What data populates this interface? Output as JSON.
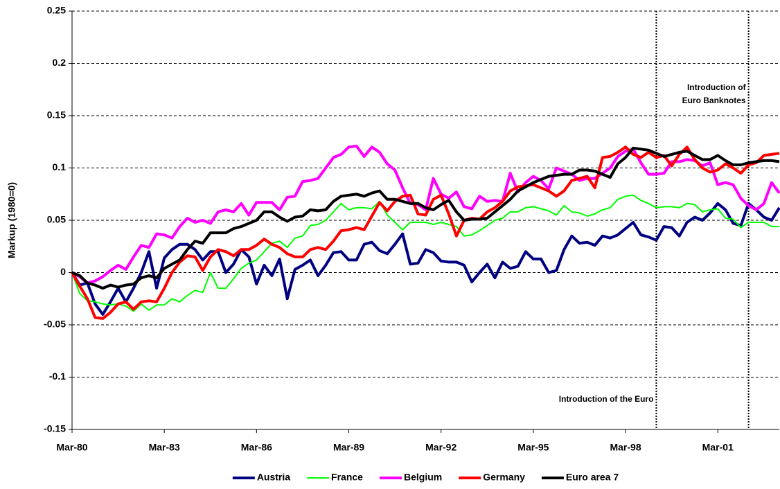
{
  "chart_data": {
    "type": "line",
    "y_label": "Markup (1980=0)",
    "categories": [
      "Mar-80",
      null,
      null,
      null,
      null,
      null,
      null,
      null,
      null,
      null,
      null,
      null,
      "Mar-83",
      null,
      null,
      null,
      null,
      null,
      null,
      null,
      null,
      null,
      null,
      null,
      "Mar-86",
      null,
      null,
      null,
      null,
      null,
      null,
      null,
      null,
      null,
      null,
      null,
      "Mar-89",
      null,
      null,
      null,
      null,
      null,
      null,
      null,
      null,
      null,
      null,
      null,
      "Mar-92",
      null,
      null,
      null,
      null,
      null,
      null,
      null,
      null,
      null,
      null,
      null,
      "Mar-95",
      null,
      null,
      null,
      null,
      null,
      null,
      null,
      null,
      null,
      null,
      null,
      "Mar-98",
      null,
      null,
      null,
      null,
      null,
      null,
      null,
      null,
      null,
      null,
      null,
      "Mar-01",
      null,
      null,
      null,
      null,
      null,
      null,
      null,
      null
    ],
    "ylim": [
      -0.15,
      0.25
    ],
    "yticks": [
      0.25,
      0.2,
      0.15,
      0.1,
      0.05,
      0,
      -0.05,
      -0.1,
      -0.15
    ],
    "grid": true,
    "legend": "bottom",
    "series": [
      {
        "name": "Austria",
        "color": "#000080",
        "values": [
          0,
          -0.012,
          -0.01,
          -0.03,
          -0.04,
          -0.028,
          -0.015,
          -0.028,
          -0.015,
          0,
          0.02,
          -0.015,
          0.014,
          0.022,
          0.027,
          0.027,
          0.022,
          0.012,
          0.02,
          0.02,
          0.0,
          0.008,
          0.022,
          0.015,
          -0.011,
          0.007,
          -0.003,
          0.013,
          -0.025,
          0.003,
          0.007,
          0.012,
          -0.003,
          0.007,
          0.019,
          0.02,
          0.012,
          0.012,
          0.027,
          0.029,
          0.021,
          0.018,
          0.027,
          0.037,
          0.008,
          0.009,
          0.022,
          0.019,
          0.011,
          0.01,
          0.01,
          0.007,
          -0.009,
          0.0,
          0.008,
          -0.005,
          0.01,
          0.004,
          0.006,
          0.02,
          0.013,
          0.013,
          0.0,
          0.002,
          0.022,
          0.035,
          0.028,
          0.029,
          0.026,
          0.035,
          0.033,
          0.036,
          0.042,
          0.048,
          0.036,
          0.034,
          0.031,
          0.044,
          0.043,
          0.035,
          0.048,
          0.053,
          0.05,
          0.057,
          0.066,
          0.06,
          0.047,
          0.045,
          0.066,
          0.06,
          0.053,
          0.05,
          0.062
        ]
      },
      {
        "name": "France",
        "color": "#00ff00",
        "values": [
          0,
          -0.02,
          -0.027,
          -0.028,
          -0.03,
          -0.031,
          -0.03,
          -0.032,
          -0.037,
          -0.03,
          -0.036,
          -0.031,
          -0.031,
          -0.025,
          -0.028,
          -0.022,
          -0.017,
          -0.019,
          0.0,
          -0.015,
          -0.015,
          -0.006,
          0.004,
          0.009,
          0.012,
          0.02,
          0.028,
          0.03,
          0.024,
          0.033,
          0.035,
          0.045,
          0.046,
          0.05,
          0.058,
          0.066,
          0.06,
          0.062,
          0.062,
          0.061,
          0.068,
          0.055,
          0.048,
          0.041,
          0.048,
          0.048,
          0.048,
          0.046,
          0.048,
          0.046,
          0.044,
          0.035,
          0.036,
          0.04,
          0.045,
          0.05,
          0.052,
          0.058,
          0.058,
          0.062,
          0.063,
          0.061,
          0.059,
          0.055,
          0.064,
          0.058,
          0.057,
          0.054,
          0.056,
          0.06,
          0.062,
          0.07,
          0.073,
          0.074,
          0.069,
          0.066,
          0.062,
          0.063,
          0.063,
          0.062,
          0.066,
          0.065,
          0.058,
          0.06,
          0.061,
          0.052,
          0.051,
          0.043,
          0.048,
          0.048,
          0.048,
          0.044,
          0.044
        ]
      },
      {
        "name": "Belgium",
        "color": "#ff00ff",
        "values": [
          0,
          -0.004,
          -0.01,
          -0.008,
          -0.004,
          0.002,
          0.007,
          0.003,
          0.015,
          0.026,
          0.024,
          0.037,
          0.036,
          0.033,
          0.044,
          0.052,
          0.048,
          0.05,
          0.047,
          0.058,
          0.06,
          0.058,
          0.066,
          0.055,
          0.067,
          0.067,
          0.067,
          0.06,
          0.072,
          0.073,
          0.087,
          0.088,
          0.09,
          0.1,
          0.11,
          0.113,
          0.12,
          0.121,
          0.111,
          0.12,
          0.115,
          0.104,
          0.098,
          0.081,
          0.066,
          0.065,
          0.06,
          0.09,
          0.075,
          0.071,
          0.077,
          0.063,
          0.061,
          0.073,
          0.068,
          0.069,
          0.068,
          0.095,
          0.077,
          0.086,
          0.092,
          0.088,
          0.08,
          0.1,
          0.097,
          0.094,
          0.088,
          0.09,
          0.09,
          0.095,
          0.1,
          0.111,
          0.116,
          0.118,
          0.105,
          0.094,
          0.094,
          0.095,
          0.106,
          0.106,
          0.108,
          0.107,
          0.102,
          0.105,
          0.084,
          0.086,
          0.084,
          0.071,
          0.064,
          0.06,
          0.066,
          0.086,
          0.076
        ]
      },
      {
        "name": "Germany",
        "color": "#ff0000",
        "values": [
          0,
          -0.013,
          -0.025,
          -0.043,
          -0.044,
          -0.038,
          -0.03,
          -0.028,
          -0.035,
          -0.028,
          -0.027,
          -0.028,
          -0.015,
          0.0,
          0.01,
          0.016,
          0.015,
          0.002,
          0.015,
          0.022,
          0.02,
          0.016,
          0.022,
          0.022,
          0.026,
          0.032,
          0.027,
          0.024,
          0.018,
          0.015,
          0.015,
          0.022,
          0.024,
          0.022,
          0.03,
          0.04,
          0.041,
          0.043,
          0.041,
          0.054,
          0.067,
          0.059,
          0.068,
          0.073,
          0.074,
          0.056,
          0.055,
          0.07,
          0.074,
          0.056,
          0.035,
          0.05,
          0.052,
          0.051,
          0.058,
          0.062,
          0.068,
          0.078,
          0.082,
          0.083,
          0.084,
          0.081,
          0.078,
          0.073,
          0.078,
          0.088,
          0.09,
          0.092,
          0.081,
          0.11,
          0.111,
          0.115,
          0.12,
          0.113,
          0.11,
          0.115,
          0.11,
          0.112,
          0.102,
          0.113,
          0.12,
          0.108,
          0.1,
          0.096,
          0.098,
          0.104,
          0.1,
          0.095,
          0.103,
          0.105,
          0.112,
          0.113,
          0.114
        ]
      },
      {
        "name": "Euro area 7",
        "color": "#000000",
        "values": [
          0,
          -0.003,
          -0.01,
          -0.012,
          -0.015,
          -0.012,
          -0.014,
          -0.012,
          -0.011,
          -0.005,
          -0.003,
          -0.005,
          0.004,
          0.008,
          0.012,
          0.022,
          0.03,
          0.028,
          0.038,
          0.038,
          0.038,
          0.042,
          0.044,
          0.047,
          0.05,
          0.058,
          0.058,
          0.053,
          0.049,
          0.053,
          0.054,
          0.06,
          0.059,
          0.06,
          0.068,
          0.073,
          0.074,
          0.075,
          0.073,
          0.076,
          0.078,
          0.07,
          0.07,
          0.068,
          0.066,
          0.066,
          0.062,
          0.06,
          0.065,
          0.069,
          0.058,
          0.05,
          0.051,
          0.051,
          0.052,
          0.058,
          0.064,
          0.07,
          0.078,
          0.082,
          0.086,
          0.089,
          0.092,
          0.093,
          0.094,
          0.094,
          0.098,
          0.098,
          0.097,
          0.094,
          0.091,
          0.104,
          0.11,
          0.119,
          0.118,
          0.117,
          0.114,
          0.111,
          0.113,
          0.115,
          0.116,
          0.112,
          0.108,
          0.108,
          0.112,
          0.107,
          0.103,
          0.103,
          0.105,
          0.106,
          0.107,
          0.107,
          0.106
        ]
      }
    ],
    "annotations": [
      {
        "x": 76,
        "text": [
          "Introduction of the Euro"
        ],
        "text_position": "bottom"
      },
      {
        "x": 88,
        "text": [
          "Introduction of",
          "Euro Banknotes"
        ],
        "text_position": "top"
      }
    ]
  }
}
